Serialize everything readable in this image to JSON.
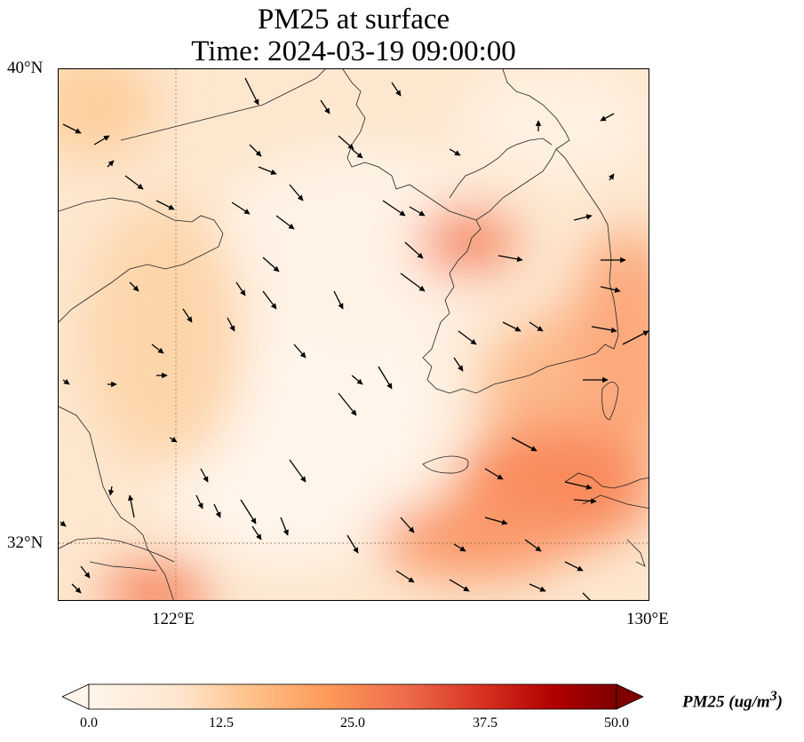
{
  "title": {
    "line1": "PM25 at surface",
    "line2": "Time: 2024-03-19 09:00:00"
  },
  "map": {
    "lat_range": [
      31.0,
      40.0
    ],
    "lon_range": [
      120.0,
      130.0
    ],
    "gridlines": "dotted, at 122°E and 32°N",
    "lat_labels": [
      "40°N",
      "32°N"
    ],
    "lon_labels": [
      "122°E",
      "130°E"
    ],
    "field": "PM25 concentration (shaded)",
    "vectors": "surface wind arrows (black)"
  },
  "colorbar": {
    "ticks": [
      "0.0",
      "12.5",
      "25.0",
      "37.5",
      "50.0"
    ],
    "min": 0,
    "max": 50,
    "extend": "both",
    "label_main": "PM25 (ug/m",
    "label_sup": "3",
    "label_close": ")",
    "colors": [
      "#fff5eb",
      "#fdd9b0",
      "#fdae6b",
      "#f16913",
      "#d94801",
      "#a50f15",
      "#7f0000"
    ]
  }
}
